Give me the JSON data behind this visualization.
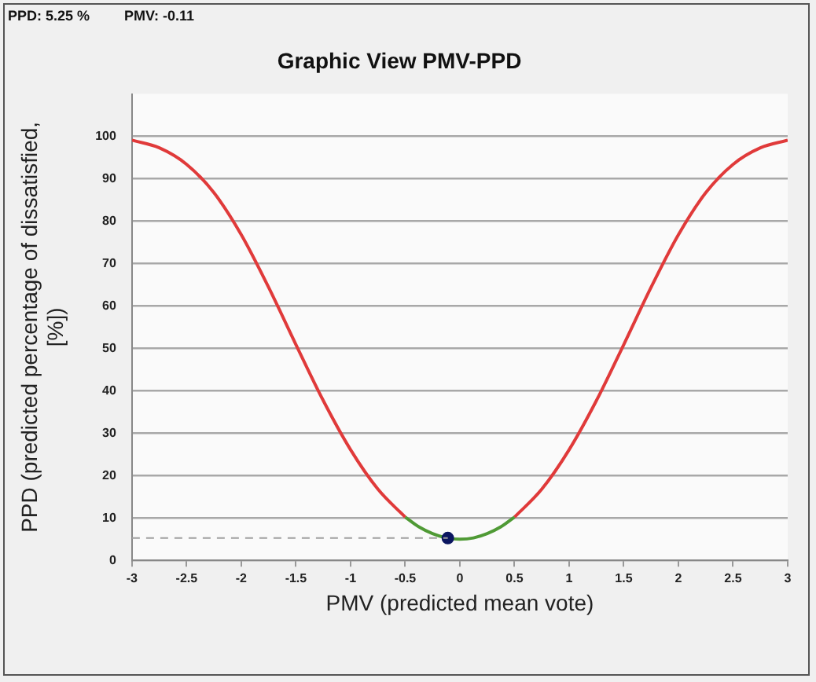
{
  "chart_data": {
    "type": "line",
    "title": "Graphic View PMV-PPD",
    "xlabel": "PMV (predicted mean vote)",
    "ylabel": "PPD (predicted percentage of dissatisfied, [%])",
    "annotations": [
      "PPD: 5.25 %",
      "PMV: -0.11"
    ],
    "xlim": [
      -3,
      3
    ],
    "xticks": [
      -3,
      -2.5,
      -2,
      -1.5,
      -1,
      -0.5,
      0,
      0.5,
      1,
      1.5,
      2,
      2.5,
      3
    ],
    "ylim": [
      0,
      110
    ],
    "yticks": [
      0,
      10,
      20,
      30,
      40,
      50,
      60,
      70,
      80,
      90,
      100
    ],
    "grid": "y",
    "legend": false,
    "marker": "none",
    "line_style": "solid",
    "ref_lines": [
      {
        "axis": "y",
        "value": 5.25,
        "color": "#a0a0a0",
        "line_style": "dashed"
      }
    ],
    "series": [
      {
        "color": "#e03a3a",
        "x": [
          -3,
          -2.75,
          -2.5,
          -2.25,
          -2,
          -1.75,
          -1.5,
          -1.25,
          -1,
          -0.75,
          -0.5
        ],
        "values": [
          99.1,
          97.3,
          93.4,
          86.7,
          76.8,
          64.4,
          50.9,
          37.7,
          26.1,
          16.8,
          10.2
        ]
      },
      {
        "color": "#4f9a35",
        "x": [
          -0.5,
          -0.375,
          -0.25,
          -0.125,
          0,
          0.125,
          0.25,
          0.375,
          0.5
        ],
        "values": [
          10.2,
          7.9,
          6.3,
          5.3,
          5,
          5.3,
          6.3,
          7.9,
          10.2
        ]
      },
      {
        "color": "#e03a3a",
        "x": [
          0.5,
          0.75,
          1,
          1.25,
          1.5,
          1.75,
          2,
          2.25,
          2.5,
          2.75,
          3
        ],
        "values": [
          10.2,
          16.8,
          26.1,
          37.7,
          50.9,
          64.4,
          76.8,
          86.7,
          93.4,
          97.3,
          99.1
        ]
      },
      {
        "type": "scatter",
        "marker": "circle",
        "color": "#0b1660",
        "x": [
          -0.11
        ],
        "values": [
          5.25
        ]
      }
    ]
  }
}
